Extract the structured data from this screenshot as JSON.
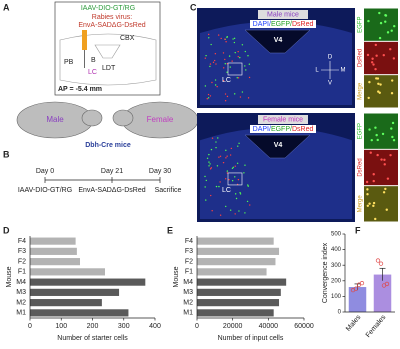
{
  "panel_a": {
    "label": "A",
    "vector": "IAAV-DIO-GT/RG",
    "rabies_title": "Rabies virus:",
    "rabies": "EnvA-SADΔG-DsRed",
    "regions": [
      "CBX",
      "PB",
      "B",
      "LC",
      "LDT"
    ],
    "ap": "AP = -5.4 mm",
    "male": "Male",
    "female": "Female",
    "mice": "Dbh-Cre mice"
  },
  "panel_b": {
    "label": "B",
    "days": [
      "Day 0",
      "Day 21",
      "Day 30"
    ],
    "steps": [
      "IAAV-DIO-GT/RG",
      "EnvA-SADΔG-DsRed",
      "Sacrifice"
    ]
  },
  "panel_c": {
    "label": "C",
    "groups": [
      "Male mice",
      "Female mice"
    ],
    "stain": [
      "DAPI/",
      "EGFP/",
      "DsRed"
    ],
    "v4": "V4",
    "lc": "LC",
    "compass": [
      "D",
      "V",
      "L",
      "M"
    ],
    "channels": [
      "EGFP",
      "DsRed",
      "Merge"
    ]
  },
  "chart_data": [
    {
      "type": "hbar",
      "label": "D",
      "categories": [
        "F4",
        "F3",
        "F2",
        "F1",
        "M4",
        "M3",
        "M2",
        "M1"
      ],
      "values": [
        146,
        150,
        160,
        240,
        369,
        285,
        230,
        315
      ],
      "colors": [
        "#b3b3b3",
        "#b3b3b3",
        "#b3b3b3",
        "#b3b3b3",
        "#5a5a5a",
        "#5a5a5a",
        "#5a5a5a",
        "#5a5a5a"
      ],
      "xlim": [
        0,
        400
      ],
      "xticks": [
        0,
        100,
        200,
        300,
        400
      ],
      "xlabel": "Number of starter cells",
      "ylabel": "Mouse"
    },
    {
      "type": "hbar",
      "label": "E",
      "categories": [
        "F4",
        "F3",
        "F2",
        "F1",
        "M4",
        "M3",
        "M2",
        "M1"
      ],
      "values": [
        43000,
        46000,
        44000,
        39000,
        50000,
        47000,
        46000,
        43000
      ],
      "colors": [
        "#b3b3b3",
        "#b3b3b3",
        "#b3b3b3",
        "#b3b3b3",
        "#5a5a5a",
        "#5a5a5a",
        "#5a5a5a",
        "#5a5a5a"
      ],
      "xlim": [
        0,
        60000
      ],
      "xticks": [
        0,
        20000,
        40000,
        60000
      ],
      "xlabel": "Number of input cells",
      "ylabel": "Mouse"
    },
    {
      "type": "bar",
      "label": "F",
      "categories": [
        "Males",
        "Females"
      ],
      "values": [
        160,
        240
      ],
      "errors": [
        20,
        40
      ],
      "points": [
        [
          140,
          150,
          175,
          185
        ],
        [
          330,
          310,
          170,
          180
        ]
      ],
      "colors": [
        "#8f8ce0",
        "#ab8ee0"
      ],
      "point_color": "#e04848",
      "ylim": [
        0,
        500
      ],
      "yticks": [
        0,
        100,
        200,
        300,
        400,
        500
      ],
      "ylabel": "Convergence index"
    }
  ]
}
